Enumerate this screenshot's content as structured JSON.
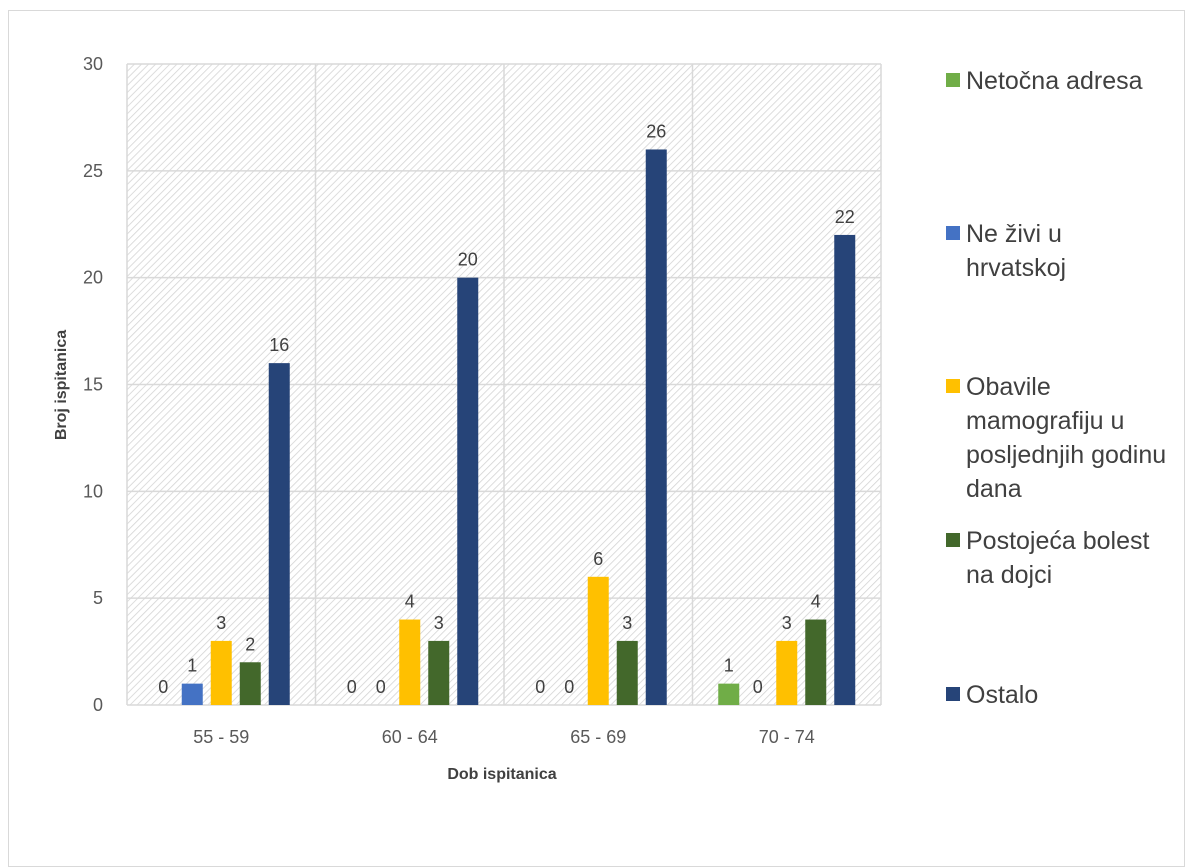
{
  "chart_data": {
    "type": "bar",
    "xlabel": "Dob ispitanica",
    "ylabel": "Broj ispitanica",
    "categories": [
      "55 - 59",
      "60 - 64",
      "65 - 69",
      "70 - 74"
    ],
    "ylim": [
      0,
      30
    ],
    "yticks": [
      "0",
      "5",
      "10",
      "15",
      "20",
      "25",
      "30"
    ],
    "grid": true,
    "legend_position": "right",
    "series": [
      {
        "name": "Netočna adresa",
        "color": "#70ad47",
        "values": [
          0,
          0,
          0,
          1
        ]
      },
      {
        "name": "Ne živi u hrvatskoj",
        "color": "#4472c4",
        "values": [
          1,
          0,
          0,
          0
        ]
      },
      {
        "name": "Obavile mamografiju u posljednjih godinu dana",
        "color": "#ffc000",
        "values": [
          3,
          4,
          6,
          3
        ]
      },
      {
        "name": "Postojeća bolest na dojci",
        "color": "#43682b",
        "values": [
          2,
          3,
          3,
          4
        ]
      },
      {
        "name": "Ostalo",
        "color": "#264478",
        "values": [
          16,
          20,
          26,
          22
        ]
      }
    ],
    "data_labels": [
      [
        "0",
        "0",
        "0",
        "1"
      ],
      [
        "1",
        "0",
        "0",
        "0"
      ],
      [
        "3",
        "4",
        "6",
        "3"
      ],
      [
        "2",
        "3",
        "3",
        "4"
      ],
      [
        "16",
        "20",
        "26",
        "22"
      ]
    ]
  }
}
